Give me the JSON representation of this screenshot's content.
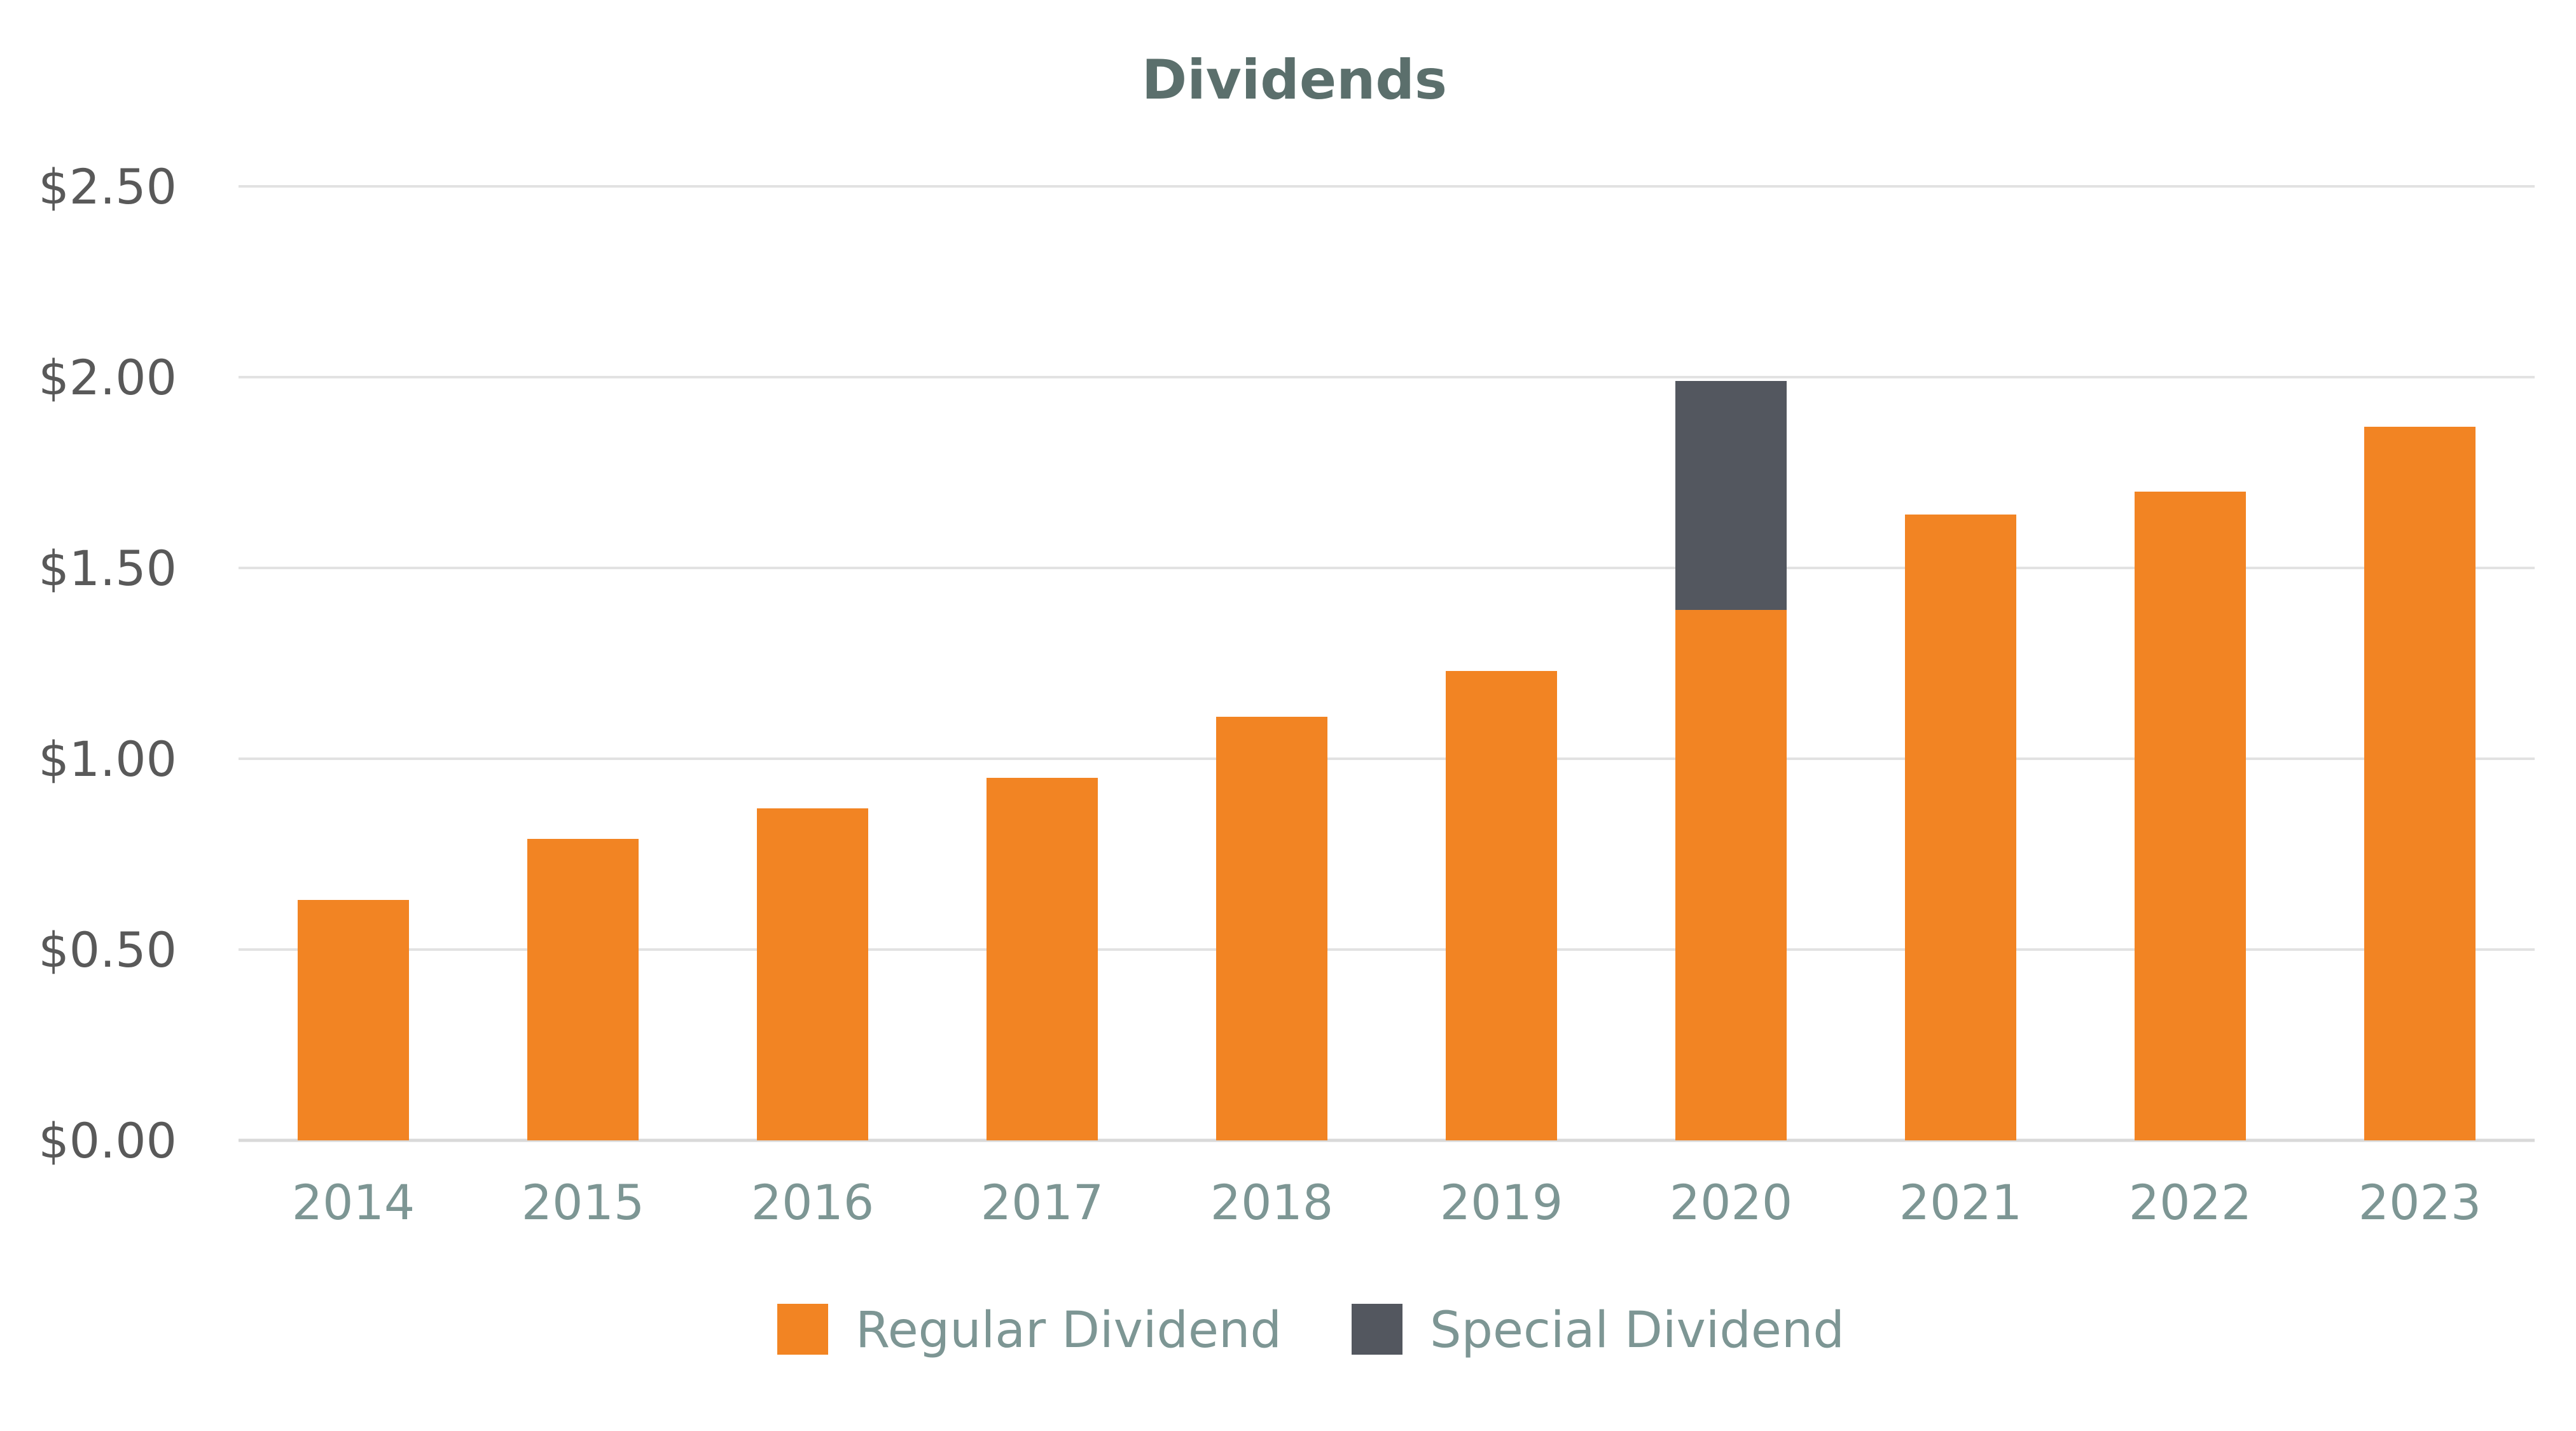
{
  "chart_data": {
    "type": "bar",
    "stacked": true,
    "title": "Dividends",
    "xlabel": "",
    "ylabel": "",
    "categories": [
      "2014",
      "2015",
      "2016",
      "2017",
      "2018",
      "2019",
      "2020",
      "2021",
      "2022",
      "2023"
    ],
    "series": [
      {
        "name": "Regular Dividend",
        "color": "#f28423",
        "values": [
          0.63,
          0.79,
          0.87,
          0.95,
          1.11,
          1.23,
          1.39,
          1.64,
          1.7,
          1.87
        ]
      },
      {
        "name": "Special Dividend",
        "color": "#53575f",
        "values": [
          0,
          0,
          0,
          0,
          0,
          0,
          0.6,
          0,
          0,
          0
        ]
      }
    ],
    "ylim": [
      0,
      2.5
    ],
    "yticks": [
      0,
      0.5,
      1.0,
      1.5,
      2.0,
      2.5
    ],
    "ytick_labels": [
      "$0.00",
      "$0.50",
      "$1.00",
      "$1.50",
      "$2.00",
      "$2.50"
    ],
    "grid": true,
    "legend_position": "bottom-center"
  }
}
